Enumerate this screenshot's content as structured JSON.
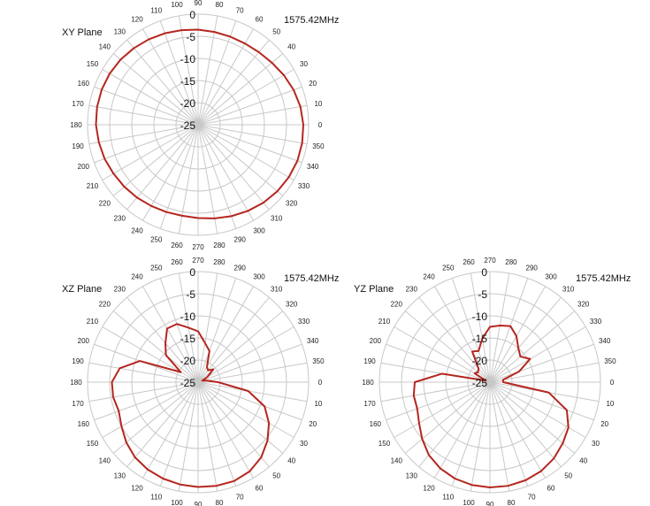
{
  "page": {
    "background": "#ffffff"
  },
  "chart_data": [
    {
      "type": "polar-line",
      "plane": "XY Plane",
      "frequency_label": "1575.42MHz",
      "angle_direction": "counterclockwise",
      "zero_angle_at": "east",
      "angle_tick_labels": [
        "0",
        "10",
        "20",
        "30",
        "40",
        "50",
        "60",
        "70",
        "80",
        "90",
        "100",
        "110",
        "120",
        "130",
        "140",
        "150",
        "160",
        "170",
        "180",
        "190",
        "200",
        "210",
        "220",
        "230",
        "240",
        "250",
        "260",
        "270",
        "280",
        "290",
        "300",
        "310",
        "320",
        "330",
        "340",
        "350"
      ],
      "radial_range": [
        -25,
        0
      ],
      "radial_tick_labels": [
        "0",
        "-5",
        "-10",
        "-15",
        "-20",
        "-25"
      ],
      "radial_ticks": [
        0,
        -5,
        -10,
        -15,
        -20,
        -25
      ],
      "line_color": "#b5261f",
      "grid": true,
      "series": [
        {
          "angles": [
            0,
            10,
            20,
            30,
            40,
            50,
            60,
            70,
            80,
            90,
            100,
            110,
            120,
            130,
            140,
            150,
            160,
            170,
            180,
            190,
            200,
            210,
            220,
            230,
            240,
            250,
            260,
            270,
            280,
            290,
            300,
            310,
            320,
            330,
            340,
            350
          ],
          "values": [
            -1.2,
            -1.5,
            -2.0,
            -2.6,
            -3.2,
            -3.6,
            -3.8,
            -3.8,
            -3.7,
            -3.5,
            -3.3,
            -3.0,
            -2.7,
            -2.4,
            -2.1,
            -1.9,
            -1.8,
            -1.8,
            -1.9,
            -2.2,
            -2.5,
            -2.9,
            -3.2,
            -3.5,
            -3.8,
            -4.0,
            -4.1,
            -3.9,
            -3.5,
            -3.0,
            -2.5,
            -2.0,
            -1.6,
            -1.3,
            -1.1,
            -1.1
          ]
        }
      ]
    },
    {
      "type": "polar-line",
      "plane": "XZ Plane",
      "frequency_label": "1575.42MHz",
      "angle_direction": "clockwise",
      "zero_angle_at": "east",
      "angle_tick_labels": [
        "0",
        "10",
        "20",
        "30",
        "40",
        "50",
        "60",
        "70",
        "80",
        "90",
        "100",
        "110",
        "120",
        "130",
        "140",
        "150",
        "160",
        "170",
        "180",
        "190",
        "200",
        "210",
        "220",
        "230",
        "240",
        "250",
        "260",
        "270",
        "280",
        "290",
        "300",
        "310",
        "320",
        "330",
        "340",
        "350"
      ],
      "radial_range": [
        -25,
        0
      ],
      "radial_tick_labels": [
        "0",
        "-5",
        "-10",
        "-15",
        "-20",
        "-25"
      ],
      "radial_ticks": [
        0,
        -5,
        -10,
        -15,
        -20,
        -25
      ],
      "line_color": "#b5261f",
      "grid": true,
      "series": [
        {
          "angles": [
            0,
            10,
            20,
            30,
            40,
            50,
            60,
            70,
            80,
            90,
            100,
            110,
            120,
            130,
            140,
            150,
            160,
            170,
            180,
            190,
            200,
            210,
            220,
            230,
            240,
            250,
            260,
            270,
            280,
            290,
            300,
            310,
            320,
            330,
            340,
            350
          ],
          "values": [
            -20.5,
            -13.5,
            -9.0,
            -6.5,
            -4.5,
            -2.8,
            -1.7,
            -1.2,
            -1.2,
            -1.3,
            -1.5,
            -1.8,
            -2.2,
            -2.8,
            -3.8,
            -5.0,
            -5.9,
            -5.5,
            -5.5,
            -7.0,
            -11.0,
            -20.5,
            -15.5,
            -13.5,
            -11.0,
            -11.0,
            -12.5,
            -13.5,
            -16.0,
            -17.5,
            -21.0,
            -21.5,
            -20.5,
            -22.5,
            -24.0,
            -23.0
          ]
        }
      ]
    },
    {
      "type": "polar-line",
      "plane": "YZ Plane",
      "frequency_label": "1575.42MHz",
      "angle_direction": "clockwise",
      "zero_angle_at": "east",
      "angle_tick_labels": [
        "0",
        "10",
        "20",
        "30",
        "40",
        "50",
        "60",
        "70",
        "80",
        "90",
        "100",
        "110",
        "120",
        "130",
        "140",
        "150",
        "160",
        "170",
        "180",
        "190",
        "200",
        "210",
        "220",
        "230",
        "240",
        "250",
        "260",
        "270",
        "280",
        "290",
        "300",
        "310",
        "320",
        "330",
        "340",
        "350"
      ],
      "radial_range": [
        -25,
        0
      ],
      "radial_tick_labels": [
        "0",
        "-5",
        "-10",
        "-15",
        "-20",
        "-25"
      ],
      "radial_ticks": [
        0,
        -5,
        -10,
        -15,
        -20,
        -25
      ],
      "line_color": "#b5261f",
      "grid": true,
      "series": [
        {
          "angles": [
            0,
            10,
            20,
            30,
            40,
            50,
            60,
            70,
            80,
            90,
            100,
            110,
            120,
            130,
            140,
            150,
            160,
            170,
            180,
            190,
            200,
            210,
            220,
            230,
            240,
            250,
            260,
            270,
            280,
            290,
            300,
            310,
            320,
            330,
            340,
            350
          ],
          "values": [
            -22.0,
            -11.5,
            -6.5,
            -4.5,
            -3.5,
            -2.5,
            -1.8,
            -1.4,
            -1.2,
            -1.2,
            -1.4,
            -1.8,
            -2.5,
            -3.5,
            -5.0,
            -6.5,
            -7.5,
            -7.5,
            -8.0,
            -14.0,
            -24.0,
            -21.0,
            -21.5,
            -21.0,
            -17.0,
            -17.5,
            -15.0,
            -12.5,
            -12.0,
            -11.5,
            -13.0,
            -15.0,
            -16.0,
            -14.5,
            -18.0,
            -22.0
          ]
        }
      ]
    }
  ]
}
